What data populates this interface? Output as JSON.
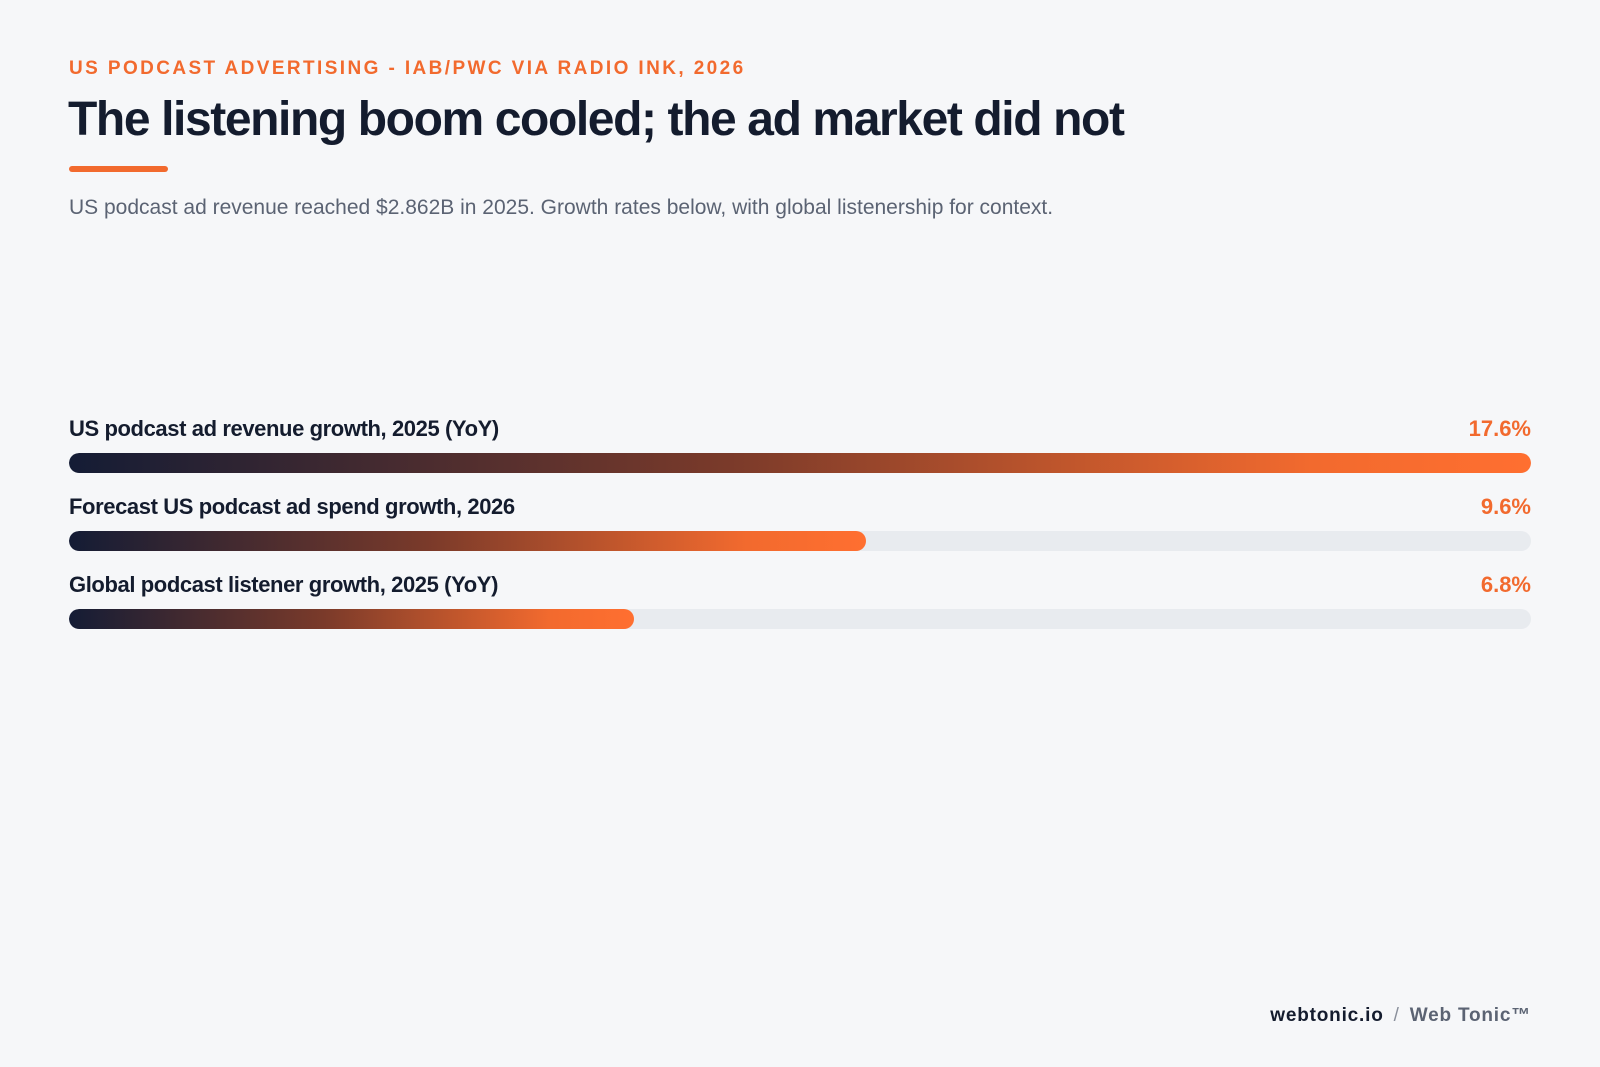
{
  "header": {
    "kicker": "US PODCAST ADVERTISING - IAB/PWC VIA RADIO INK, 2026",
    "title": "The listening boom cooled; the ad market did not",
    "subtitle": "US podcast ad revenue reached $2.862B in 2025. Growth rates below, with global listenership for context."
  },
  "colors": {
    "accent": "#f26a2e",
    "ink": "#141c2e",
    "track": "#e8ebef",
    "background": "#f6f7f9"
  },
  "chart_data": {
    "type": "bar",
    "orientation": "horizontal",
    "categories": [
      "US podcast ad revenue growth, 2025 (YoY)",
      "Forecast US podcast ad spend growth, 2026",
      "Global podcast listener growth, 2025 (YoY)"
    ],
    "values": [
      17.6,
      9.6,
      6.8
    ],
    "value_labels": [
      "17.6%",
      "9.6%",
      "6.8%"
    ],
    "xlim": [
      0,
      17.6
    ],
    "grid": false
  },
  "footer": {
    "domain": "webtonic.io",
    "separator": "/",
    "brand": "Web Tonic™"
  }
}
